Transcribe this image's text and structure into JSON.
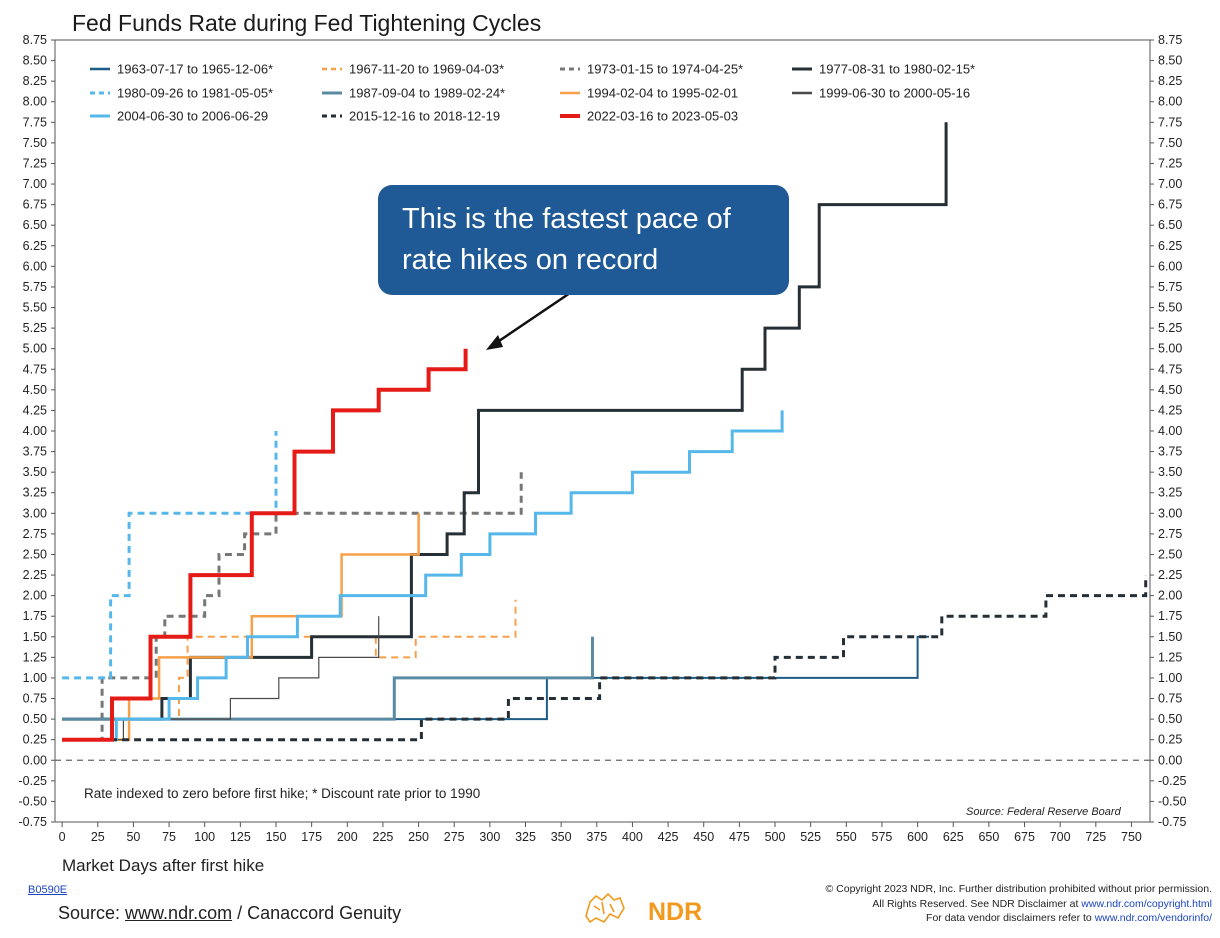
{
  "title": "Fed Funds Rate during Fed Tightening Cycles",
  "annotation": "Rate indexed to zero before first hike; * Discount rate prior to 1990",
  "callout": "This is the fastest pace of rate hikes on record",
  "source_small": "Source:  Federal Reserve Board",
  "footer": {
    "code": "B0590E",
    "source_prefix": "Source: ",
    "source_link": "www.ndr.com",
    "source_suffix": " / Canaccord Genuity",
    "logo_text": "NDR",
    "copyright_line1": "© Copyright 2023 NDR, Inc. Further distribution prohibited without prior permission.",
    "copyright_line2_prefix": "All Rights Reserved. See NDR Disclaimer at ",
    "copyright_line2_link": "www.ndr.com/copyright.html",
    "copyright_line3_prefix": "For data vendor disclaimers refer to ",
    "copyright_line3_link": "www.ndr.com/vendorinfo/"
  },
  "chart_data": {
    "type": "line",
    "title": "Fed Funds Rate during Fed Tightening Cycles",
    "xlabel": "Market Days after first hike",
    "ylabel": "",
    "xlim": [
      -5,
      763
    ],
    "ylim": [
      -0.75,
      8.75
    ],
    "x_ticks": [
      0,
      25,
      50,
      75,
      100,
      125,
      150,
      175,
      200,
      225,
      250,
      275,
      300,
      325,
      350,
      375,
      400,
      425,
      450,
      475,
      500,
      525,
      550,
      575,
      600,
      625,
      650,
      675,
      700,
      725,
      750
    ],
    "y_ticks": [
      -0.75,
      -0.5,
      -0.25,
      0,
      0.25,
      0.5,
      0.75,
      1,
      1.25,
      1.5,
      1.75,
      2,
      2.25,
      2.5,
      2.75,
      3,
      3.25,
      3.5,
      3.75,
      4,
      4.25,
      4.5,
      4.75,
      5,
      5.25,
      5.5,
      5.75,
      6,
      6.25,
      6.5,
      6.75,
      7,
      7.25,
      7.5,
      7.75,
      8,
      8.25,
      8.5,
      8.75
    ],
    "y_tick_labels": [
      "-0.75",
      "-0.50",
      "-0.25",
      "0.00",
      "0.25",
      "0.50",
      "0.75",
      "1.00",
      "1.25",
      "1.50",
      "1.75",
      "2.00",
      "2.25",
      "2.50",
      "2.75",
      "3.00",
      "3.25",
      "3.50",
      "3.75",
      "4.00",
      "4.25",
      "4.50",
      "4.75",
      "5.00",
      "5.25",
      "5.50",
      "5.75",
      "6.00",
      "6.25",
      "6.50",
      "6.75",
      "7.00",
      "7.25",
      "7.50",
      "7.75",
      "8.00",
      "8.25",
      "8.50",
      "8.75"
    ],
    "y_axis_both_sides": true,
    "zero_line": "dashed",
    "legend_placement": "top",
    "series": [
      {
        "name": "1963-07-17 to 1965-12-06*",
        "color": "#1d5c85",
        "dash": "solid",
        "width": 2,
        "points": [
          [
            0,
            0.5
          ],
          [
            340,
            0.5
          ],
          [
            340,
            1.0
          ],
          [
            600,
            1.0
          ],
          [
            600,
            1.5
          ],
          [
            608,
            1.5
          ]
        ]
      },
      {
        "name": "1967-11-20 to 1969-04-03*",
        "color": "#f7a04a",
        "dash": "dashed",
        "width": 2,
        "points": [
          [
            0,
            0.5
          ],
          [
            82,
            0.5
          ],
          [
            82,
            1.0
          ],
          [
            88,
            1.0
          ],
          [
            88,
            1.5
          ],
          [
            220,
            1.5
          ],
          [
            220,
            1.25
          ],
          [
            248,
            1.25
          ],
          [
            248,
            1.5
          ],
          [
            318,
            1.5
          ],
          [
            318,
            1.95
          ]
        ]
      },
      {
        "name": "1973-01-15 to 1974-04-25*",
        "color": "#777777",
        "dash": "dashed",
        "width": 3,
        "points": [
          [
            0,
            0.25
          ],
          [
            28,
            0.25
          ],
          [
            28,
            1.0
          ],
          [
            66,
            1.0
          ],
          [
            66,
            1.5
          ],
          [
            72,
            1.5
          ],
          [
            72,
            1.75
          ],
          [
            100,
            1.75
          ],
          [
            100,
            2.0
          ],
          [
            110,
            2.0
          ],
          [
            110,
            2.5
          ],
          [
            128,
            2.5
          ],
          [
            128,
            2.75
          ],
          [
            150,
            2.75
          ],
          [
            150,
            3.0
          ],
          [
            322,
            3.0
          ],
          [
            322,
            3.5
          ]
        ]
      },
      {
        "name": "1977-08-31 to 1980-02-15*",
        "color": "#262f36",
        "dash": "solid",
        "width": 3,
        "points": [
          [
            0,
            0.5
          ],
          [
            70,
            0.5
          ],
          [
            70,
            0.75
          ],
          [
            90,
            0.75
          ],
          [
            90,
            1.25
          ],
          [
            175,
            1.25
          ],
          [
            175,
            1.5
          ],
          [
            245,
            1.5
          ],
          [
            245,
            2.5
          ],
          [
            270,
            2.5
          ],
          [
            270,
            2.75
          ],
          [
            282,
            2.75
          ],
          [
            282,
            3.25
          ],
          [
            292,
            3.25
          ],
          [
            292,
            4.25
          ],
          [
            477,
            4.25
          ],
          [
            477,
            4.75
          ],
          [
            493,
            4.75
          ],
          [
            493,
            5.25
          ],
          [
            517,
            5.25
          ],
          [
            517,
            5.75
          ],
          [
            531,
            5.75
          ],
          [
            531,
            6.75
          ],
          [
            620,
            6.75
          ],
          [
            620,
            7.75
          ]
        ]
      },
      {
        "name": "1980-09-26 to 1981-05-05*",
        "color": "#56b8ea",
        "dash": "dashed",
        "width": 3,
        "points": [
          [
            0,
            1.0
          ],
          [
            34,
            1.0
          ],
          [
            34,
            2.0
          ],
          [
            47,
            2.0
          ],
          [
            47,
            3.0
          ],
          [
            150,
            3.0
          ],
          [
            150,
            4.0
          ]
        ]
      },
      {
        "name": "1987-09-04 to 1989-02-24*",
        "color": "#5a8ba3",
        "dash": "solid",
        "width": 3,
        "points": [
          [
            0,
            0.5
          ],
          [
            233,
            0.5
          ],
          [
            233,
            1.0
          ],
          [
            372,
            1.0
          ],
          [
            372,
            1.5
          ]
        ]
      },
      {
        "name": "1994-02-04 to 1995-02-01",
        "color": "#f7a04a",
        "dash": "solid",
        "width": 2.5,
        "points": [
          [
            0,
            0.25
          ],
          [
            47,
            0.25
          ],
          [
            47,
            0.75
          ],
          [
            68,
            0.75
          ],
          [
            68,
            1.25
          ],
          [
            133,
            1.25
          ],
          [
            133,
            1.75
          ],
          [
            196,
            1.75
          ],
          [
            196,
            2.5
          ],
          [
            250,
            2.5
          ],
          [
            250,
            3.0
          ]
        ]
      },
      {
        "name": "1999-06-30 to 2000-05-16",
        "color": "#4a4a4a",
        "dash": "solid",
        "width": 1.2,
        "points": [
          [
            0,
            0.25
          ],
          [
            43,
            0.25
          ],
          [
            43,
            0.5
          ],
          [
            118,
            0.5
          ],
          [
            118,
            0.75
          ],
          [
            152,
            0.75
          ],
          [
            152,
            1.0
          ],
          [
            180,
            1.0
          ],
          [
            180,
            1.25
          ],
          [
            222,
            1.25
          ],
          [
            222,
            1.75
          ]
        ]
      },
      {
        "name": "2004-06-30 to 2006-06-29",
        "color": "#56b8ea",
        "dash": "solid",
        "width": 3,
        "points": [
          [
            0,
            0.25
          ],
          [
            38,
            0.25
          ],
          [
            38,
            0.5
          ],
          [
            75,
            0.5
          ],
          [
            75,
            0.75
          ],
          [
            95,
            0.75
          ],
          [
            95,
            1.0
          ],
          [
            115,
            1.0
          ],
          [
            115,
            1.25
          ],
          [
            130,
            1.25
          ],
          [
            130,
            1.5
          ],
          [
            165,
            1.5
          ],
          [
            165,
            1.75
          ],
          [
            195,
            1.75
          ],
          [
            195,
            2.0
          ],
          [
            255,
            2.0
          ],
          [
            255,
            2.25
          ],
          [
            280,
            2.25
          ],
          [
            280,
            2.5
          ],
          [
            300,
            2.5
          ],
          [
            300,
            2.75
          ],
          [
            332,
            2.75
          ],
          [
            332,
            3.0
          ],
          [
            357,
            3.0
          ],
          [
            357,
            3.25
          ],
          [
            400,
            3.25
          ],
          [
            400,
            3.5
          ],
          [
            440,
            3.5
          ],
          [
            440,
            3.75
          ],
          [
            470,
            3.75
          ],
          [
            470,
            4.0
          ],
          [
            505,
            4.0
          ],
          [
            505,
            4.25
          ]
        ]
      },
      {
        "name": "2015-12-16 to 2018-12-19",
        "color": "#262f36",
        "dash": "dashed",
        "width": 3,
        "points": [
          [
            0,
            0.25
          ],
          [
            252,
            0.25
          ],
          [
            252,
            0.5
          ],
          [
            313,
            0.5
          ],
          [
            313,
            0.75
          ],
          [
            377,
            0.75
          ],
          [
            377,
            1.0
          ],
          [
            500,
            1.0
          ],
          [
            500,
            1.25
          ],
          [
            548,
            1.25
          ],
          [
            548,
            1.5
          ],
          [
            617,
            1.5
          ],
          [
            617,
            1.75
          ],
          [
            690,
            1.75
          ],
          [
            690,
            2.0
          ],
          [
            760,
            2.0
          ],
          [
            760,
            2.25
          ]
        ]
      },
      {
        "name": "2022-03-16 to 2023-05-03",
        "color": "#e41b17",
        "dash": "solid",
        "width": 4,
        "points": [
          [
            0,
            0.25
          ],
          [
            35,
            0.25
          ],
          [
            35,
            0.75
          ],
          [
            62,
            0.75
          ],
          [
            62,
            1.5
          ],
          [
            90,
            1.5
          ],
          [
            90,
            2.25
          ],
          [
            133,
            2.25
          ],
          [
            133,
            3.0
          ],
          [
            163,
            3.0
          ],
          [
            163,
            3.75
          ],
          [
            190,
            3.75
          ],
          [
            190,
            4.25
          ],
          [
            222,
            4.25
          ],
          [
            222,
            4.5
          ],
          [
            257,
            4.5
          ],
          [
            257,
            4.75
          ],
          [
            283,
            4.75
          ],
          [
            283,
            5.0
          ]
        ]
      }
    ]
  }
}
